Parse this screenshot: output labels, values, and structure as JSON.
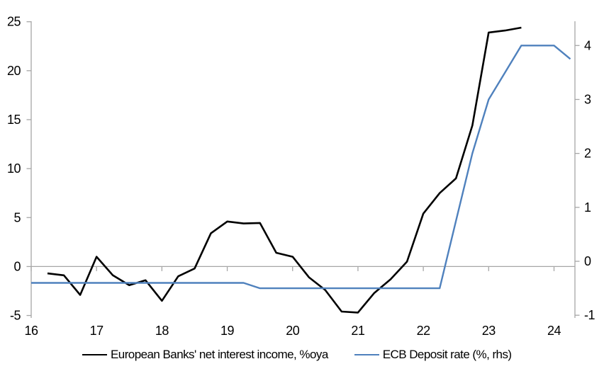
{
  "chart_data": {
    "type": "line",
    "legend_position": "bottom",
    "axis_color": "#a6a6a6",
    "background_color": "#ffffff",
    "x_axis": {
      "ticks": [
        16,
        17,
        18,
        19,
        20,
        21,
        22,
        23,
        24
      ],
      "range": [
        16,
        24.32
      ],
      "grid": false
    },
    "left_axis": {
      "ticks": [
        25,
        20,
        15,
        10,
        5,
        0,
        -5
      ],
      "range": [
        -5.25,
        25.05
      ],
      "zero_line": true
    },
    "right_axis": {
      "ticks": [
        4,
        3,
        2,
        1,
        0,
        -1
      ],
      "range": [
        -1.05,
        4.45
      ]
    },
    "series": [
      {
        "name": "European Banks' net interest income, %oya",
        "color": "#000000",
        "axis": "left",
        "x": [
          16.25,
          16.5,
          16.75,
          17,
          17.25,
          17.5,
          17.75,
          18,
          18.25,
          18.5,
          18.75,
          19,
          19.25,
          19.5,
          19.75,
          20,
          20.25,
          20.5,
          20.75,
          21,
          21.25,
          21.5,
          21.75,
          22,
          22.25,
          22.5,
          22.75,
          23,
          23.25,
          23.5
        ],
        "values": [
          -0.7,
          -0.9,
          -2.9,
          1,
          -0.9,
          -1.9,
          -1.4,
          -3.5,
          -1,
          -0.2,
          3.4,
          4.6,
          4.4,
          4.45,
          1.4,
          1,
          -1.1,
          -2.4,
          -4.6,
          -4.7,
          -2.7,
          -1.3,
          0.5,
          5.4,
          7.5,
          9,
          14.4,
          23.9,
          24.1,
          24.4
        ]
      },
      {
        "name": "ECB Deposit rate (%, rhs)",
        "color": "#4f81bd",
        "axis": "right",
        "x": [
          16,
          16.25,
          16.5,
          16.75,
          17,
          17.25,
          17.5,
          17.75,
          18,
          18.25,
          18.5,
          18.75,
          19,
          19.25,
          19.5,
          19.75,
          20,
          20.25,
          20.5,
          20.75,
          21,
          21.25,
          21.5,
          21.75,
          22,
          22.25,
          22.5,
          22.75,
          23,
          23.25,
          23.5,
          23.75,
          24,
          24.25
        ],
        "values": [
          -0.4,
          -0.4,
          -0.4,
          -0.4,
          -0.4,
          -0.4,
          -0.4,
          -0.4,
          -0.4,
          -0.4,
          -0.4,
          -0.4,
          -0.4,
          -0.4,
          -0.5,
          -0.5,
          -0.5,
          -0.5,
          -0.5,
          -0.5,
          -0.5,
          -0.5,
          -0.5,
          -0.5,
          -0.5,
          -0.5,
          0.75,
          2,
          3,
          3.5,
          4,
          4,
          4,
          3.75
        ]
      }
    ]
  }
}
